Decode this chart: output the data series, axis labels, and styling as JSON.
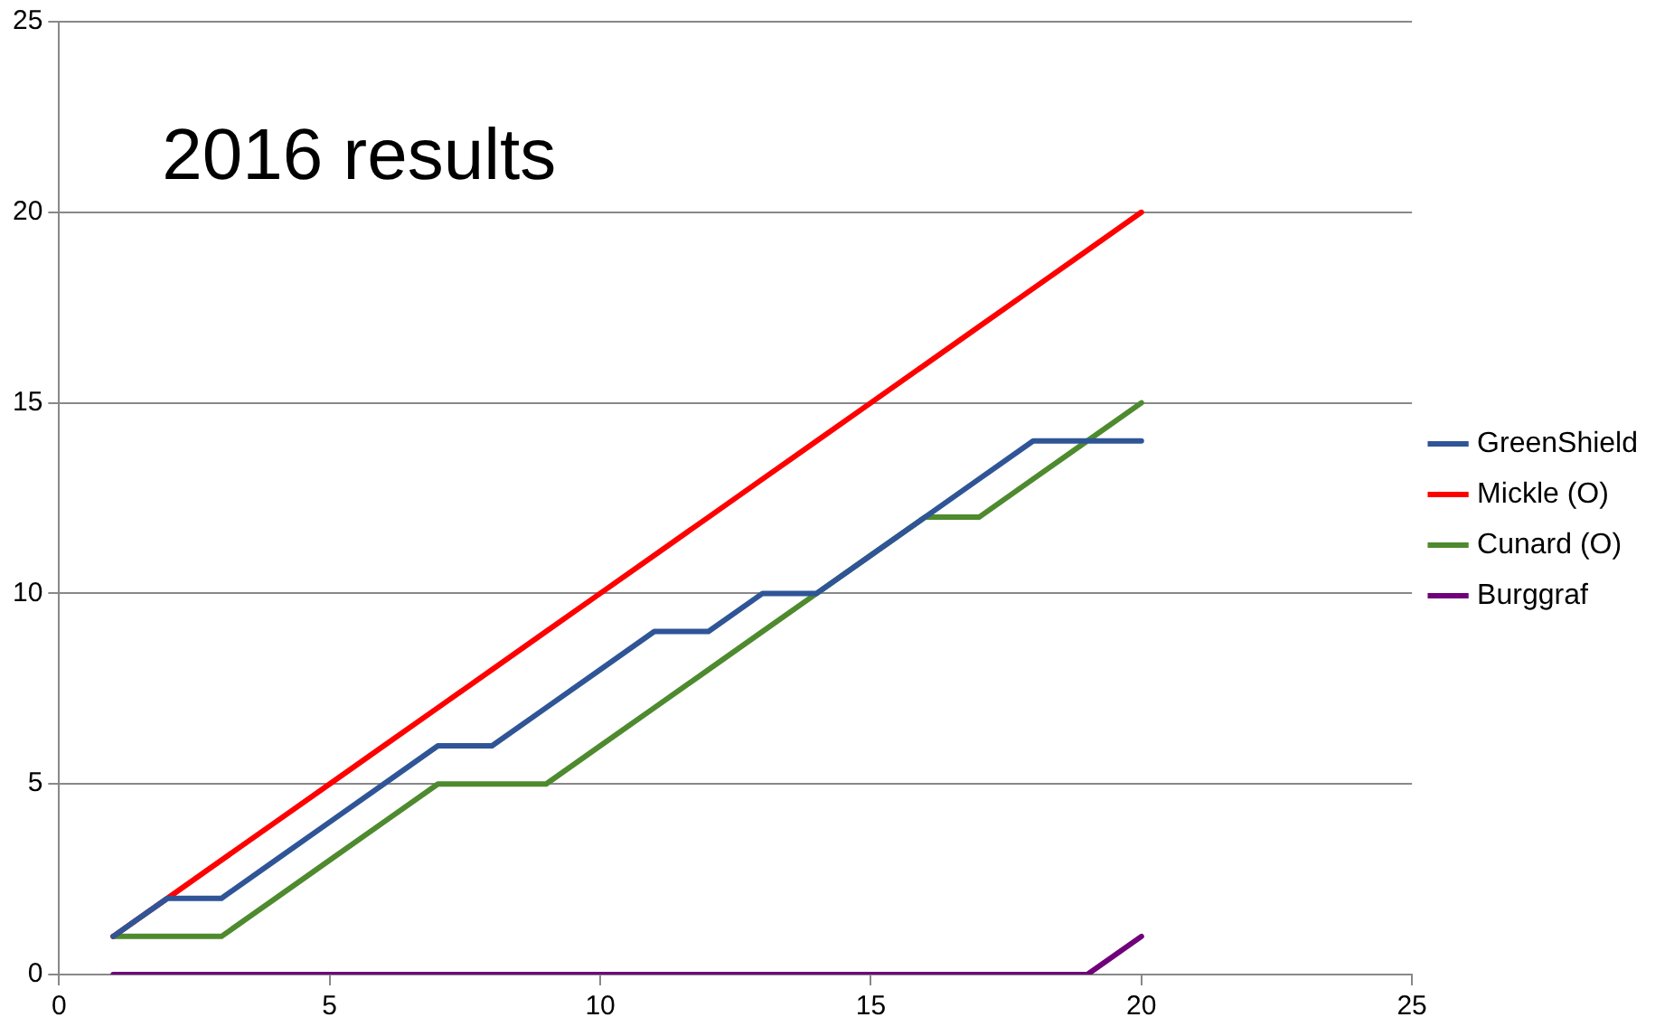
{
  "chart_data": {
    "type": "line",
    "title": "2016 results",
    "x": [
      1,
      2,
      3,
      4,
      5,
      6,
      7,
      8,
      9,
      10,
      11,
      12,
      13,
      14,
      15,
      16,
      17,
      18,
      19,
      20
    ],
    "series": [
      {
        "name": "GreenShield",
        "color": "#2f5597",
        "values": [
          1,
          2,
          2,
          3,
          4,
          5,
          6,
          6,
          7,
          8,
          9,
          9,
          10,
          10,
          11,
          12,
          13,
          14,
          14,
          14
        ]
      },
      {
        "name": "Mickle (O)",
        "color": "#ff0000",
        "values": [
          1,
          2,
          3,
          4,
          5,
          6,
          7,
          8,
          9,
          10,
          11,
          12,
          13,
          14,
          15,
          16,
          17,
          18,
          19,
          20
        ]
      },
      {
        "name": "Cunard (O)",
        "color": "#4e8a2e",
        "values": [
          1,
          1,
          1,
          2,
          3,
          4,
          5,
          5,
          5,
          6,
          7,
          8,
          9,
          10,
          11,
          12,
          12,
          13,
          14,
          15
        ]
      },
      {
        "name": "Burggraf",
        "color": "#70007a",
        "values": [
          0,
          0,
          0,
          0,
          0,
          0,
          0,
          0,
          0,
          0,
          0,
          0,
          0,
          0,
          0,
          0,
          0,
          0,
          0,
          1
        ]
      }
    ],
    "xlim": [
      0,
      25
    ],
    "xticks": [
      0,
      5,
      10,
      15,
      20,
      25
    ],
    "ylim": [
      0,
      25
    ],
    "yticks": [
      0,
      5,
      10,
      15,
      20,
      25
    ],
    "grid": "y",
    "legend": "right",
    "marker": "none",
    "line_style": "solid"
  }
}
